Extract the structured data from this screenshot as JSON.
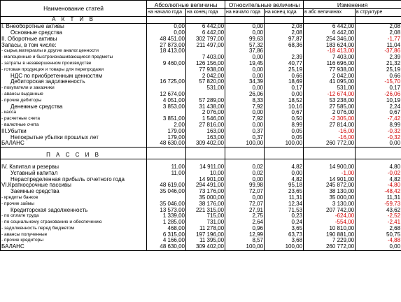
{
  "headers": {
    "col_name": "Наименование статей",
    "abs": "Абсолютные величины",
    "rel": "Относительные величины",
    "chg": "Изменения",
    "sub": [
      "на начало года",
      "на конец года",
      "на начало года",
      "на конец года",
      "в абс величинах",
      "в структуре"
    ]
  },
  "asset_title": "А К Т И В",
  "liab_title": "П А С С И В",
  "rows": [
    {
      "t": "s",
      "n": "I. Внеоборотные активы",
      "v": [
        "0,00",
        "6 442,00",
        "0,00",
        "2,08",
        "6 442,00",
        "2,08"
      ]
    },
    {
      "t": "i",
      "n": "Основные средства",
      "v": [
        "0,00",
        "6 442,00",
        "0,00",
        "2,08",
        "6 442,00",
        "2,08"
      ]
    },
    {
      "t": "s",
      "n": "II. Оборотные активы",
      "v": [
        "48 451,00",
        "302 797,00",
        "99,63",
        "97,87",
        "254 346,00",
        "-1,77"
      ]
    },
    {
      "t": "s",
      "n": "Запасы, в том числе:",
      "v": [
        "27 873,00",
        "211 497,00",
        "57,32",
        "68,36",
        "183 624,00",
        "11,04"
      ]
    },
    {
      "t": "d",
      "n": "- сырье,материалы и другие аналог.ценности",
      "v": [
        "18 413,00",
        "",
        "37,86",
        "",
        "-18 413,00",
        "-37,86"
      ]
    },
    {
      "t": "d",
      "n": "- малоценные и быстроизнашивающиеся предметы",
      "v": [
        "",
        "7 403,00",
        "0,00",
        "2,39",
        "7 403,00",
        "2,39"
      ]
    },
    {
      "t": "d",
      "n": "- затраты в незавершенном производстве",
      "v": [
        "9 460,00",
        "126 156,00",
        "19,45",
        "40,77",
        "116 696,00",
        "21,32"
      ]
    },
    {
      "t": "d",
      "n": "- готовая продукция и товары для перепродажи",
      "v": [
        "",
        "77 938,00",
        "0,00",
        "25,19",
        "77 938,00",
        "25,19"
      ]
    },
    {
      "t": "i",
      "n": "НДС по приобретенным ценностям",
      "v": [
        "",
        "2 042,00",
        "0,00",
        "0,66",
        "2 042,00",
        "0,66"
      ]
    },
    {
      "t": "i",
      "n": "Дебиторская задолженность",
      "v": [
        "16 725,00",
        "57 820,00",
        "34,39",
        "18,69",
        "41 095,00",
        "-15,70"
      ]
    },
    {
      "t": "d",
      "n": "- покупатели и заказчики",
      "v": [
        "",
        "531,00",
        "0,00",
        "0,17",
        "531,00",
        "0,17"
      ]
    },
    {
      "t": "d",
      "n": "- авансы выданные",
      "v": [
        "12 674,00",
        "",
        "26,06",
        "0,00",
        "-12 674,00",
        "-26,06"
      ]
    },
    {
      "t": "d",
      "n": "- прочие дебиторы",
      "v": [
        "4 051,00",
        "57 289,00",
        "8,33",
        "18,52",
        "53 238,00",
        "10,19"
      ]
    },
    {
      "t": "i",
      "n": "Денежные средства",
      "v": [
        "3 853,00",
        "31 438,00",
        "7,92",
        "10,16",
        "27 585,00",
        "2,24"
      ]
    },
    {
      "t": "d",
      "n": "- касса",
      "v": [
        "",
        "2 076,00",
        "0,00",
        "0,67",
        "2 076,00",
        "0,67"
      ]
    },
    {
      "t": "d",
      "n": "- расчетные счета",
      "v": [
        "3 851,00",
        "1 546,00",
        "7,92",
        "0,50",
        "-2 305,00",
        "-7,42"
      ]
    },
    {
      "t": "d",
      "n": "- валютные счета",
      "v": [
        "2,00",
        "27 816,00",
        "0,00",
        "8,99",
        "27 814,00",
        "8,99"
      ]
    },
    {
      "t": "s",
      "n": "III.Убытки",
      "v": [
        "179,00",
        "163,00",
        "0,37",
        "0,05",
        "-16,00",
        "-0,32"
      ]
    },
    {
      "t": "i",
      "n": "Непокрытые убытки прошлых лет",
      "v": [
        "179,00",
        "163,00",
        "0,37",
        "0,05",
        "-16,00",
        "-0,32"
      ]
    },
    {
      "t": "b",
      "n": "БАЛАНС",
      "v": [
        "48 630,00",
        "309 402,00",
        "100,00",
        "100,00",
        "260 772,00",
        "0,00"
      ]
    },
    {
      "t": "blank"
    },
    {
      "t": "lt"
    },
    {
      "t": "blank"
    },
    {
      "t": "s",
      "n": "IV. Капитал и резервы",
      "v": [
        "11,00",
        "14 911,00",
        "0,02",
        "4,82",
        "14 900,00",
        "4,80"
      ]
    },
    {
      "t": "i",
      "n": "Уставный капитал",
      "v": [
        "11,00",
        "10,00",
        "0,02",
        "0,00",
        "-1,00",
        "-0,02"
      ]
    },
    {
      "t": "i",
      "n": "Нераспределенная прибыль отчетного года",
      "v": [
        "",
        "14 901,00",
        "0,00",
        "4,82",
        "14 901,00",
        "4,82"
      ]
    },
    {
      "t": "s",
      "n": "VI.Краткосрочные пассивы",
      "v": [
        "48 619,00",
        "294 491,00",
        "99,98",
        "95,18",
        "245 872,00",
        "-4,80"
      ]
    },
    {
      "t": "i",
      "n": "Заемные средства",
      "v": [
        "35 046,00",
        "73 176,00",
        "72,07",
        "23,65",
        "38 130,00",
        "-48,42"
      ]
    },
    {
      "t": "d",
      "n": "- кредиты банков",
      "v": [
        "",
        "35 000,00",
        "0,00",
        "11,31",
        "35 000,00",
        "11,31"
      ]
    },
    {
      "t": "d",
      "n": "- прочие займы",
      "v": [
        "35 046,00",
        "38 176,00",
        "72,07",
        "12,34",
        "3 130,00",
        "-59,73"
      ]
    },
    {
      "t": "i",
      "n": "Кредиторская задолженность",
      "v": [
        "13 573,00",
        "221 315,00",
        "27,91",
        "71,53",
        "207 742,00",
        "43,62"
      ]
    },
    {
      "t": "d",
      "n": "- по оплате труда",
      "v": [
        "1 339,00",
        "715,00",
        "2,75",
        "0,23",
        "-624,00",
        "-2,52"
      ]
    },
    {
      "t": "d",
      "n": "- по социальному страхованию и обеспечению",
      "v": [
        "1 285,00",
        "731,00",
        "2,64",
        "0,24",
        "-554,00",
        "-2,41"
      ]
    },
    {
      "t": "d",
      "n": "- задолженность перед бюджетом",
      "v": [
        "468,00",
        "11 278,00",
        "0,96",
        "3,65",
        "10 810,00",
        "2,68"
      ]
    },
    {
      "t": "d",
      "n": "- авансы полученные",
      "v": [
        "6 315,00",
        "197 196,00",
        "12,99",
        "63,73",
        "190 881,00",
        "50,75"
      ]
    },
    {
      "t": "d",
      "n": "- прочие кредиторы",
      "v": [
        "4 166,00",
        "11 395,00",
        "8,57",
        "3,68",
        "7 229,00",
        "-4,88"
      ]
    },
    {
      "t": "b",
      "n": "БАЛАНС",
      "v": [
        "48 630,00",
        "309 402,00",
        "100,00",
        "100,00",
        "260 772,00",
        "0,00"
      ]
    }
  ]
}
